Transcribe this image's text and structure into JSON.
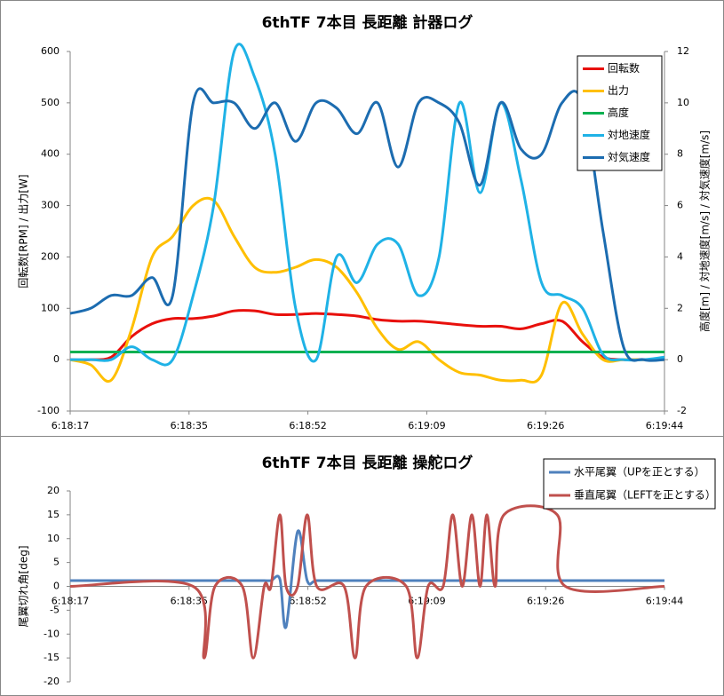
{
  "chart_data": [
    {
      "type": "line",
      "title": "6thTF 7本目 長距離 計器ログ",
      "y_label": "回転数[RPM] / 出力[W]",
      "y2_label": "高度[m] / 対地速度[m/s] / 対気速度[m/s]",
      "legend": "top-right",
      "grid": false,
      "x": [
        0,
        3,
        6,
        9,
        12,
        15,
        18,
        21,
        24,
        27,
        30,
        33,
        36,
        39,
        42,
        45,
        48,
        51,
        54,
        57,
        60,
        63,
        66,
        69,
        72,
        75,
        78,
        81,
        84,
        87
      ],
      "xlim": [
        0,
        87
      ],
      "xticks": [
        {
          "value": 0,
          "label": "6:18:17"
        },
        {
          "value": 17.4,
          "label": "6:18:35"
        },
        {
          "value": 34.8,
          "label": "6:18:52"
        },
        {
          "value": 52.2,
          "label": "6:19:09"
        },
        {
          "value": 69.6,
          "label": "6:19:26"
        },
        {
          "value": 87,
          "label": "6:19:44"
        }
      ],
      "ylim": [
        -100,
        600
      ],
      "yticks": [
        -100,
        0,
        100,
        200,
        300,
        400,
        500,
        600
      ],
      "y2lim": [
        -2,
        12
      ],
      "y2ticks": [
        -2,
        0,
        2,
        4,
        6,
        8,
        10,
        12
      ],
      "series": [
        {
          "name": "回転数",
          "color": "#e8100c",
          "values": [
            0,
            0,
            5,
            45,
            70,
            80,
            80,
            85,
            95,
            95,
            88,
            88,
            90,
            88,
            85,
            78,
            75,
            75,
            72,
            68,
            65,
            65,
            60,
            70,
            75,
            35,
            5,
            0,
            0,
            0
          ]
        },
        {
          "name": "出力",
          "color": "#ffbf00",
          "values": [
            0,
            -10,
            -40,
            60,
            200,
            240,
            300,
            310,
            240,
            180,
            170,
            180,
            195,
            180,
            130,
            60,
            20,
            35,
            0,
            -25,
            -30,
            -40,
            -40,
            -30,
            110,
            50,
            0,
            0,
            0,
            0
          ]
        },
        {
          "name": "高度",
          "color": "#00b050",
          "axis": "y2",
          "values": [
            0.3,
            0.3,
            0.3,
            0.3,
            0.3,
            0.3,
            0.3,
            0.3,
            0.3,
            0.3,
            0.3,
            0.3,
            0.3,
            0.3,
            0.3,
            0.3,
            0.3,
            0.3,
            0.3,
            0.3,
            0.3,
            0.3,
            0.3,
            0.3,
            0.3,
            0.3,
            0.3,
            0.3,
            0.3,
            0.3
          ]
        },
        {
          "name": "対地速度",
          "color": "#1fb2e6",
          "axis": "y2",
          "values": [
            0,
            0,
            0,
            0.5,
            0,
            0,
            2.5,
            6,
            12,
            11,
            8,
            2,
            0,
            4,
            3,
            4.5,
            4.5,
            2.5,
            4,
            10,
            6.5,
            10,
            7,
            3,
            2.5,
            2,
            0.2,
            0,
            0,
            0.1
          ]
        },
        {
          "name": "対気速度",
          "color": "#1c6cb0",
          "axis": "y2",
          "values": [
            1.8,
            2,
            2.5,
            2.5,
            3.2,
            2.5,
            10,
            10,
            10,
            9,
            10,
            8.5,
            10,
            9.8,
            8.8,
            10,
            7.5,
            10,
            10,
            9.2,
            6.8,
            10,
            8.2,
            8,
            10,
            10,
            5,
            0.5,
            0,
            0
          ]
        }
      ]
    },
    {
      "type": "line",
      "title": "6thTF 7本目 長距離 操舵ログ",
      "y_label": "尾翼切れ角[deg]",
      "legend": "top-right",
      "grid": false,
      "x": [
        0,
        18,
        19.6,
        21.2,
        25.2,
        26.8,
        28.4,
        29.4,
        30.7,
        31.6,
        33.3,
        34.7,
        36.1,
        40.1,
        41.7,
        43.3,
        49.2,
        50.8,
        52.4,
        54.6,
        56,
        57.4,
        58.8,
        60,
        61,
        62.2,
        63.5,
        71.3,
        72.5,
        87
      ],
      "xlim": [
        0,
        87
      ],
      "xticks": [
        {
          "value": 0,
          "label": "6:18:17"
        },
        {
          "value": 17.4,
          "label": "6:18:35"
        },
        {
          "value": 34.8,
          "label": "6:18:52"
        },
        {
          "value": 52.2,
          "label": "6:19:09"
        },
        {
          "value": 69.6,
          "label": "6:19:26"
        },
        {
          "value": 87,
          "label": "6:19:44"
        }
      ],
      "ylim": [
        -20,
        20
      ],
      "yticks": [
        -20,
        -15,
        -10,
        -5,
        0,
        5,
        10,
        15,
        20
      ],
      "series": [
        {
          "name": "水平尾翼（UPを正とする）",
          "color": "#4f81bd",
          "values": [
            1.2,
            1.2,
            1.2,
            1.2,
            1.2,
            1.2,
            1.2,
            1.2,
            1.5,
            -8.5,
            11.5,
            1.2,
            1.2,
            1.2,
            1.2,
            1.2,
            1.2,
            1.2,
            1.2,
            1.2,
            1.2,
            1.2,
            1.2,
            1.2,
            1.2,
            1.2,
            1.2,
            1.2,
            1.2,
            1.2
          ]
        },
        {
          "name": "垂直尾翼（LEFTを正とする）",
          "color": "#c0504d",
          "values": [
            0,
            0,
            -15,
            0,
            0,
            -15,
            0,
            0,
            15,
            0,
            0,
            15,
            0,
            0,
            -15,
            0,
            0,
            -15,
            0,
            0,
            15,
            0,
            15,
            0,
            15,
            0,
            15,
            15,
            0,
            0
          ]
        }
      ]
    }
  ]
}
